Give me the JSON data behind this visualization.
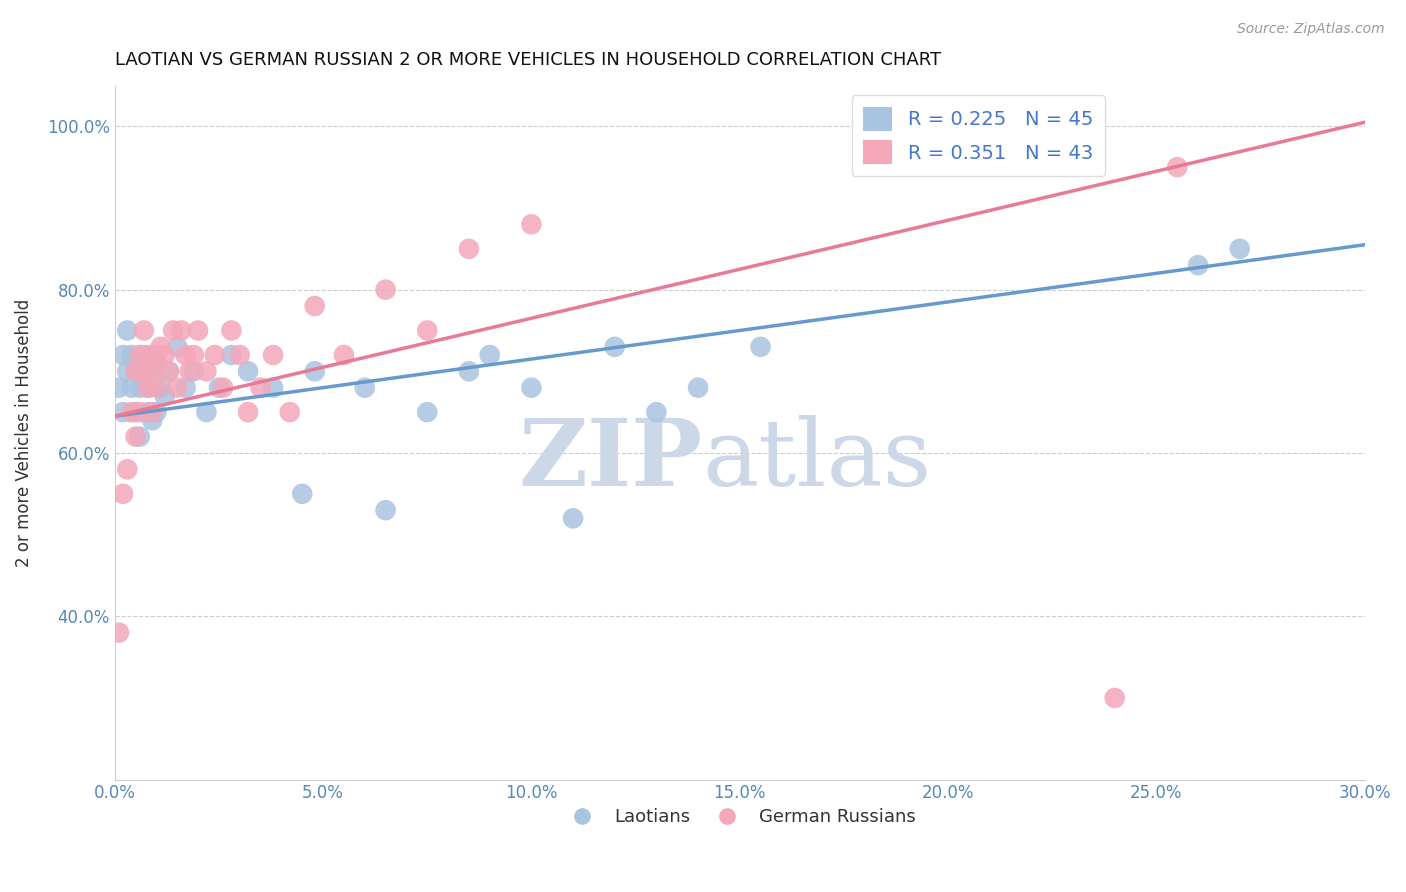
{
  "title": "LAOTIAN VS GERMAN RUSSIAN 2 OR MORE VEHICLES IN HOUSEHOLD CORRELATION CHART",
  "source": "Source: ZipAtlas.com",
  "ylabel": "2 or more Vehicles in Household",
  "xlim": [
    0.0,
    0.3
  ],
  "ylim": [
    0.2,
    1.05
  ],
  "xticks": [
    0.0,
    0.05,
    0.1,
    0.15,
    0.2,
    0.25,
    0.3
  ],
  "xtick_labels": [
    "0.0%",
    "5.0%",
    "10.0%",
    "15.0%",
    "20.0%",
    "25.0%",
    "30.0%"
  ],
  "yticks": [
    0.4,
    0.6,
    0.8,
    1.0
  ],
  "ytick_labels": [
    "40.0%",
    "60.0%",
    "80.0%",
    "100.0%"
  ],
  "laotian_R": 0.225,
  "laotian_N": 45,
  "german_russian_R": 0.351,
  "german_russian_N": 43,
  "laotian_color": "#a8c4e0",
  "german_russian_color": "#f4a7b9",
  "laotian_line_color": "#6699cc",
  "german_russian_line_color": "#e87a96",
  "watermark_zip": "ZIP",
  "watermark_atlas": "atlas",
  "watermark_color": "#ccd8e8",
  "legend_label_1": "Laotians",
  "legend_label_2": "German Russians",
  "laotian_x": [
    0.001,
    0.002,
    0.002,
    0.003,
    0.003,
    0.004,
    0.004,
    0.005,
    0.005,
    0.006,
    0.006,
    0.007,
    0.007,
    0.008,
    0.008,
    0.009,
    0.009,
    0.01,
    0.01,
    0.011,
    0.012,
    0.013,
    0.015,
    0.017,
    0.019,
    0.022,
    0.025,
    0.028,
    0.032,
    0.038,
    0.045,
    0.048,
    0.06,
    0.065,
    0.075,
    0.085,
    0.09,
    0.1,
    0.11,
    0.12,
    0.13,
    0.14,
    0.155,
    0.26,
    0.27
  ],
  "laotian_y": [
    0.68,
    0.72,
    0.65,
    0.7,
    0.75,
    0.68,
    0.72,
    0.65,
    0.7,
    0.68,
    0.62,
    0.7,
    0.72,
    0.68,
    0.65,
    0.7,
    0.64,
    0.71,
    0.65,
    0.68,
    0.67,
    0.7,
    0.73,
    0.68,
    0.7,
    0.65,
    0.68,
    0.72,
    0.7,
    0.68,
    0.55,
    0.7,
    0.68,
    0.53,
    0.65,
    0.7,
    0.72,
    0.68,
    0.52,
    0.73,
    0.65,
    0.68,
    0.73,
    0.83,
    0.85
  ],
  "german_russian_x": [
    0.001,
    0.002,
    0.003,
    0.004,
    0.005,
    0.005,
    0.006,
    0.006,
    0.007,
    0.007,
    0.008,
    0.008,
    0.009,
    0.009,
    0.01,
    0.01,
    0.011,
    0.012,
    0.013,
    0.014,
    0.015,
    0.016,
    0.017,
    0.018,
    0.019,
    0.02,
    0.022,
    0.024,
    0.026,
    0.028,
    0.03,
    0.032,
    0.035,
    0.038,
    0.042,
    0.048,
    0.055,
    0.065,
    0.075,
    0.085,
    0.1,
    0.24,
    0.255
  ],
  "german_russian_y": [
    0.38,
    0.55,
    0.58,
    0.65,
    0.62,
    0.7,
    0.72,
    0.65,
    0.7,
    0.75,
    0.68,
    0.72,
    0.65,
    0.7,
    0.72,
    0.68,
    0.73,
    0.72,
    0.7,
    0.75,
    0.68,
    0.75,
    0.72,
    0.7,
    0.72,
    0.75,
    0.7,
    0.72,
    0.68,
    0.75,
    0.72,
    0.65,
    0.68,
    0.72,
    0.65,
    0.78,
    0.72,
    0.8,
    0.75,
    0.85,
    0.88,
    0.3,
    0.95
  ],
  "blue_line_x0": 0.0,
  "blue_line_y0": 0.645,
  "blue_line_x1": 0.3,
  "blue_line_y1": 0.855,
  "pink_line_x0": 0.0,
  "pink_line_y0": 0.645,
  "pink_line_x1": 0.3,
  "pink_line_y1": 1.005
}
